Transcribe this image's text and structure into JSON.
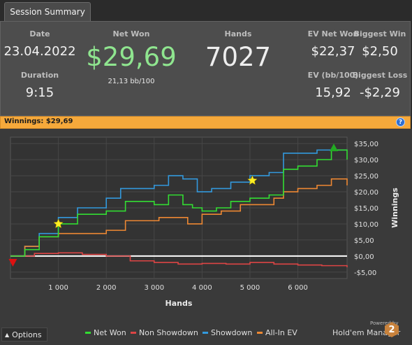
{
  "tab": {
    "label": "Session Summary"
  },
  "summary": {
    "date_label": "Date",
    "date_value": "23.04.2022",
    "duration_label": "Duration",
    "duration_value": "9:15",
    "net_won_label": "Net Won",
    "net_won_value": "$29,69",
    "bb_per_100": "21,13 bb/100",
    "hands_label": "Hands",
    "hands_value": "7027",
    "ev_net_won_label": "EV Net Won",
    "ev_net_won_value": "$22,37",
    "biggest_win_label": "Biggest Win",
    "biggest_win_value": "$2,50",
    "ev_bb100_label": "EV (bb/100)",
    "ev_bb100_value": "15,92",
    "biggest_loss_label": "Biggest Loss",
    "biggest_loss_value": "-$2,29"
  },
  "banner": {
    "text": "Winnings: $29,69",
    "help_icon": "?"
  },
  "chart_data": {
    "type": "line",
    "xlabel": "Hands",
    "ylabel": "Winnings",
    "xlim": [
      0,
      7027
    ],
    "ylim": [
      -7,
      37
    ],
    "x_ticks": [
      1000,
      2000,
      3000,
      4000,
      5000,
      6000
    ],
    "x_tick_labels": [
      "1 000",
      "2 000",
      "3 000",
      "4 000",
      "5 000",
      "6 000"
    ],
    "y_ticks": [
      35,
      30,
      25,
      20,
      15,
      10,
      5,
      0,
      -5
    ],
    "y_tick_labels": [
      "$35,00",
      "$30,00",
      "$25,00",
      "$20,00",
      "$15,00",
      "$10,00",
      "$5,00",
      "$0,00",
      "-$5,00"
    ],
    "colors": {
      "net_won": "#33dd33",
      "non_showdown": "#dd4444",
      "showdown": "#3399dd",
      "all_in_ev": "#ee8833"
    },
    "series": [
      {
        "name": "Net Won",
        "x": [
          0,
          300,
          600,
          1000,
          1400,
          2000,
          2400,
          2800,
          3000,
          3300,
          3600,
          3800,
          4000,
          4300,
          4600,
          5000,
          5400,
          5700,
          6000,
          6400,
          6700,
          7027
        ],
        "y": [
          0,
          2,
          6,
          10,
          13,
          14,
          17,
          17,
          16,
          19,
          16,
          15,
          14,
          15,
          17,
          18,
          19,
          27,
          28,
          30,
          33,
          30
        ]
      },
      {
        "name": "Non Showdown",
        "x": [
          0,
          500,
          1000,
          1500,
          2000,
          2500,
          3000,
          3500,
          4000,
          4500,
          5000,
          5500,
          6000,
          6500,
          7027
        ],
        "y": [
          0,
          0.8,
          1,
          0.5,
          0,
          -1.5,
          -2,
          -2.5,
          -2.3,
          -2.5,
          -2,
          -2.5,
          -2.8,
          -3,
          -3.5
        ]
      },
      {
        "name": "Showdown",
        "x": [
          0,
          300,
          600,
          1000,
          1400,
          2000,
          2300,
          2700,
          3000,
          3300,
          3600,
          3900,
          4200,
          4600,
          5000,
          5400,
          5700,
          6000,
          6400,
          6700,
          7027
        ],
        "y": [
          0,
          3,
          7,
          12,
          15,
          18,
          21,
          21,
          22,
          25,
          24,
          20,
          21,
          23,
          25,
          26,
          32,
          32,
          33,
          33,
          33
        ]
      },
      {
        "name": "All-In EV",
        "x": [
          0,
          300,
          600,
          1000,
          1400,
          2000,
          2400,
          2800,
          3100,
          3400,
          3700,
          4000,
          4400,
          4800,
          5200,
          5500,
          5700,
          6000,
          6400,
          6700,
          7027
        ],
        "y": [
          0,
          3,
          6,
          7,
          7,
          8,
          11,
          11,
          12,
          12,
          10,
          13,
          14,
          16,
          16,
          18,
          20,
          21,
          22,
          24,
          22
        ]
      }
    ],
    "markers": [
      {
        "type": "star",
        "x": 1000,
        "y": 10
      },
      {
        "type": "star",
        "x": 5050,
        "y": 23.5
      },
      {
        "type": "green-up-triangle",
        "x": 6750,
        "y": 33.5
      },
      {
        "type": "red-down-triangle",
        "x": 50,
        "y": -2
      }
    ]
  },
  "footer": {
    "options_label": "Options",
    "options_icon": "caret-up-icon",
    "legend": [
      {
        "label": "Net Won",
        "color": "#33dd33"
      },
      {
        "label": "Non Showdown",
        "color": "#dd4444"
      },
      {
        "label": "Showdown",
        "color": "#3399dd"
      },
      {
        "label": "All-In EV",
        "color": "#ee8833"
      }
    ],
    "powered_by": "Powered by",
    "brand": "Hold'em Manager",
    "brand_number": "2"
  }
}
